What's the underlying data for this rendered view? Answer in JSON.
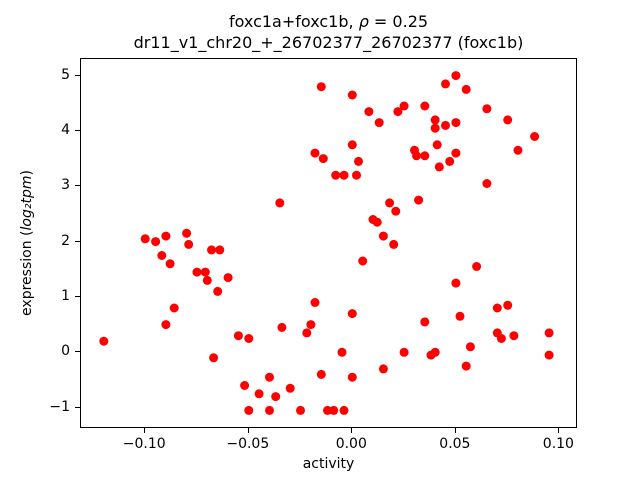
{
  "chart_data": {
    "type": "scatter",
    "title1_pre": "foxc1a+foxc1b, ",
    "title1_math": "ρ",
    "title1_post": " = 0.25",
    "title_line2": "dr11_v1_chr20_+_26702377_26702377 (foxc1b)",
    "xlabel": "activity",
    "ylabel_pre": "expression (",
    "ylabel_math": "log₂tpm",
    "ylabel_post": ")",
    "marker_color": "#ff0000",
    "marker_radius_px": 4.5,
    "xlim": [
      -0.131,
      0.108
    ],
    "ylim": [
      -1.35,
      5.3
    ],
    "x_ticks": {
      "values": [
        -0.1,
        -0.05,
        0.0,
        0.05,
        0.1
      ],
      "labels": [
        "−0.10",
        "−0.05",
        "0.00",
        "0.05",
        "0.10"
      ]
    },
    "y_ticks": {
      "values": [
        -1,
        0,
        1,
        2,
        3,
        4,
        5
      ],
      "labels": [
        "−1",
        "0",
        "1",
        "2",
        "3",
        "4",
        "5"
      ]
    },
    "points": [
      [
        -0.12,
        0.2
      ],
      [
        -0.1,
        2.05
      ],
      [
        -0.095,
        2.0
      ],
      [
        -0.092,
        1.75
      ],
      [
        -0.09,
        2.1
      ],
      [
        -0.088,
        1.6
      ],
      [
        -0.086,
        0.8
      ],
      [
        -0.09,
        0.5
      ],
      [
        -0.08,
        2.15
      ],
      [
        -0.079,
        1.95
      ],
      [
        -0.075,
        1.45
      ],
      [
        -0.071,
        1.45
      ],
      [
        -0.07,
        1.3
      ],
      [
        -0.068,
        1.85
      ],
      [
        -0.065,
        1.1
      ],
      [
        -0.064,
        1.85
      ],
      [
        -0.067,
        -0.1
      ],
      [
        -0.06,
        1.35
      ],
      [
        -0.055,
        0.3
      ],
      [
        -0.05,
        0.25
      ],
      [
        -0.052,
        -0.6
      ],
      [
        -0.05,
        -1.05
      ],
      [
        -0.045,
        -0.75
      ],
      [
        -0.04,
        -0.45
      ],
      [
        -0.04,
        -1.05
      ],
      [
        -0.037,
        -0.8
      ],
      [
        -0.035,
        2.7
      ],
      [
        -0.034,
        0.45
      ],
      [
        -0.03,
        -0.65
      ],
      [
        -0.025,
        -1.05
      ],
      [
        -0.022,
        0.35
      ],
      [
        -0.02,
        0.5
      ],
      [
        -0.018,
        3.6
      ],
      [
        -0.015,
        4.8
      ],
      [
        -0.014,
        3.5
      ],
      [
        -0.018,
        0.9
      ],
      [
        -0.015,
        -0.4
      ],
      [
        -0.012,
        -1.05
      ],
      [
        -0.009,
        -1.05
      ],
      [
        -0.008,
        3.2
      ],
      [
        -0.004,
        3.2
      ],
      [
        -0.005,
        0.0
      ],
      [
        -0.004,
        -1.05
      ],
      [
        0.0,
        4.65
      ],
      [
        0.0,
        3.75
      ],
      [
        0.002,
        3.2
      ],
      [
        0.003,
        3.45
      ],
      [
        0.0,
        0.7
      ],
      [
        0.0,
        -0.45
      ],
      [
        0.005,
        1.65
      ],
      [
        0.008,
        4.35
      ],
      [
        0.01,
        2.4
      ],
      [
        0.012,
        2.35
      ],
      [
        0.013,
        4.15
      ],
      [
        0.015,
        2.1
      ],
      [
        0.015,
        -0.3
      ],
      [
        0.018,
        2.7
      ],
      [
        0.02,
        1.95
      ],
      [
        0.021,
        2.55
      ],
      [
        0.022,
        4.35
      ],
      [
        0.025,
        4.45
      ],
      [
        0.025,
        0.0
      ],
      [
        0.03,
        3.65
      ],
      [
        0.031,
        3.55
      ],
      [
        0.032,
        2.75
      ],
      [
        0.035,
        3.55
      ],
      [
        0.035,
        4.45
      ],
      [
        0.035,
        0.55
      ],
      [
        0.038,
        -0.05
      ],
      [
        0.04,
        4.2
      ],
      [
        0.04,
        4.05
      ],
      [
        0.041,
        3.75
      ],
      [
        0.04,
        0.0
      ],
      [
        0.042,
        3.35
      ],
      [
        0.045,
        4.85
      ],
      [
        0.045,
        4.1
      ],
      [
        0.047,
        3.45
      ],
      [
        0.05,
        5.0
      ],
      [
        0.05,
        4.15
      ],
      [
        0.05,
        3.6
      ],
      [
        0.05,
        1.25
      ],
      [
        0.052,
        0.65
      ],
      [
        0.055,
        4.75
      ],
      [
        0.055,
        -0.25
      ],
      [
        0.057,
        0.1
      ],
      [
        0.06,
        1.55
      ],
      [
        0.065,
        3.05
      ],
      [
        0.065,
        4.4
      ],
      [
        0.07,
        0.8
      ],
      [
        0.07,
        0.35
      ],
      [
        0.072,
        0.25
      ],
      [
        0.075,
        4.2
      ],
      [
        0.075,
        0.85
      ],
      [
        0.078,
        0.3
      ],
      [
        0.08,
        3.65
      ],
      [
        0.088,
        3.9
      ],
      [
        0.095,
        0.35
      ],
      [
        0.095,
        -0.05
      ]
    ]
  }
}
